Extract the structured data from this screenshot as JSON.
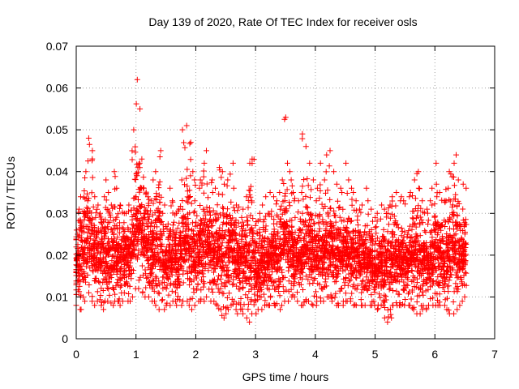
{
  "chart_data": {
    "type": "scatter",
    "title": "Day 139 of 2020, Rate Of TEC Index for receiver osls",
    "xlabel": "GPS time / hours",
    "ylabel": "ROTI / TECUs",
    "xlim": [
      0,
      7
    ],
    "ylim": [
      0,
      0.07
    ],
    "xticks": [
      0,
      1,
      2,
      3,
      4,
      5,
      6,
      7
    ],
    "xtick_labels": [
      "0",
      "1",
      "2",
      "3",
      "4",
      "5",
      "6",
      "7"
    ],
    "yticks": [
      0,
      0.01,
      0.02,
      0.03,
      0.04,
      0.05,
      0.06,
      0.07
    ],
    "ytick_labels": [
      "0",
      "0.01",
      "0.02",
      "0.03",
      "0.04",
      "0.05",
      "0.06",
      "0.07"
    ],
    "grid": true,
    "marker": "+",
    "marker_color": "#ff0000",
    "series": [
      {
        "name": "ROTI",
        "x": [
          0.0,
          0.05,
          0.1,
          0.15,
          0.2,
          0.25,
          0.3,
          0.35,
          0.4,
          0.45,
          0.5,
          0.55,
          0.6,
          0.65,
          0.7,
          0.75,
          0.8,
          0.85,
          0.9,
          0.95,
          1.0,
          1.05,
          1.1,
          1.15,
          1.2,
          1.25,
          1.3,
          1.35,
          1.4,
          1.45,
          1.5,
          1.55,
          1.6,
          1.65,
          1.7,
          1.75,
          1.8,
          1.85,
          1.9,
          1.95,
          2.0,
          2.05,
          2.1,
          2.15,
          2.2,
          2.25,
          2.3,
          2.35,
          2.4,
          2.45,
          2.5,
          2.55,
          2.6,
          2.65,
          2.7,
          2.75,
          2.8,
          2.85,
          2.9,
          2.95,
          3.0,
          3.05,
          3.1,
          3.15,
          3.2,
          3.25,
          3.3,
          3.35,
          3.4,
          3.45,
          3.5,
          3.55,
          3.6,
          3.65,
          3.7,
          3.75,
          3.8,
          3.85,
          3.9,
          3.95,
          4.0,
          4.05,
          4.1,
          4.15,
          4.2,
          4.25,
          4.3,
          4.35,
          4.4,
          4.45,
          4.5,
          4.55,
          4.6,
          4.65,
          4.7,
          4.75,
          4.8,
          4.85,
          4.9,
          4.95,
          5.0,
          5.05,
          5.1,
          5.15,
          5.2,
          5.25,
          5.3,
          5.35,
          5.4,
          5.45,
          5.5,
          5.55,
          5.6,
          5.65,
          5.7,
          5.75,
          5.8,
          5.85,
          5.9,
          5.95,
          6.0,
          6.05,
          6.1,
          6.15,
          6.2,
          6.25,
          6.3,
          6.35,
          6.4,
          6.45,
          6.5
        ],
        "y_max": [
          0.026,
          0.031,
          0.034,
          0.04,
          0.048,
          0.045,
          0.034,
          0.032,
          0.03,
          0.034,
          0.038,
          0.035,
          0.032,
          0.04,
          0.036,
          0.032,
          0.03,
          0.03,
          0.032,
          0.05,
          0.062,
          0.055,
          0.043,
          0.036,
          0.034,
          0.033,
          0.038,
          0.04,
          0.045,
          0.03,
          0.032,
          0.036,
          0.033,
          0.03,
          0.031,
          0.038,
          0.05,
          0.051,
          0.047,
          0.04,
          0.038,
          0.036,
          0.038,
          0.042,
          0.045,
          0.038,
          0.035,
          0.036,
          0.041,
          0.04,
          0.037,
          0.038,
          0.042,
          0.036,
          0.032,
          0.029,
          0.031,
          0.034,
          0.042,
          0.043,
          0.028,
          0.03,
          0.032,
          0.034,
          0.03,
          0.035,
          0.034,
          0.033,
          0.035,
          0.038,
          0.053,
          0.042,
          0.038,
          0.035,
          0.033,
          0.035,
          0.049,
          0.046,
          0.042,
          0.038,
          0.033,
          0.036,
          0.042,
          0.038,
          0.044,
          0.045,
          0.04,
          0.037,
          0.036,
          0.035,
          0.042,
          0.038,
          0.036,
          0.035,
          0.033,
          0.031,
          0.032,
          0.036,
          0.033,
          0.031,
          0.029,
          0.03,
          0.032,
          0.031,
          0.03,
          0.032,
          0.034,
          0.035,
          0.033,
          0.034,
          0.033,
          0.034,
          0.035,
          0.038,
          0.04,
          0.036,
          0.033,
          0.031,
          0.033,
          0.036,
          0.042,
          0.037,
          0.035,
          0.033,
          0.036,
          0.04,
          0.042,
          0.044,
          0.038,
          0.037,
          0.036
        ],
        "y_typical": [
          0.018,
          0.02,
          0.021,
          0.023,
          0.025,
          0.024,
          0.021,
          0.019,
          0.018,
          0.019,
          0.021,
          0.02,
          0.019,
          0.021,
          0.02,
          0.019,
          0.019,
          0.019,
          0.02,
          0.024,
          0.028,
          0.027,
          0.024,
          0.022,
          0.021,
          0.02,
          0.021,
          0.022,
          0.023,
          0.018,
          0.018,
          0.019,
          0.019,
          0.019,
          0.018,
          0.02,
          0.023,
          0.024,
          0.022,
          0.021,
          0.02,
          0.02,
          0.021,
          0.022,
          0.023,
          0.021,
          0.02,
          0.02,
          0.021,
          0.021,
          0.02,
          0.02,
          0.021,
          0.02,
          0.019,
          0.018,
          0.018,
          0.019,
          0.02,
          0.02,
          0.017,
          0.017,
          0.018,
          0.018,
          0.018,
          0.019,
          0.019,
          0.019,
          0.02,
          0.021,
          0.023,
          0.022,
          0.021,
          0.02,
          0.019,
          0.02,
          0.022,
          0.022,
          0.021,
          0.02,
          0.019,
          0.02,
          0.021,
          0.02,
          0.021,
          0.022,
          0.021,
          0.02,
          0.02,
          0.019,
          0.021,
          0.02,
          0.019,
          0.019,
          0.018,
          0.018,
          0.018,
          0.019,
          0.018,
          0.018,
          0.017,
          0.017,
          0.018,
          0.017,
          0.017,
          0.018,
          0.018,
          0.019,
          0.018,
          0.018,
          0.018,
          0.018,
          0.019,
          0.02,
          0.02,
          0.019,
          0.018,
          0.018,
          0.018,
          0.019,
          0.021,
          0.02,
          0.019,
          0.018,
          0.019,
          0.02,
          0.021,
          0.022,
          0.02,
          0.02,
          0.019
        ],
        "y_min": [
          0.008,
          0.007,
          0.007,
          0.009,
          0.011,
          0.009,
          0.008,
          0.009,
          0.008,
          0.007,
          0.009,
          0.009,
          0.008,
          0.009,
          0.009,
          0.008,
          0.009,
          0.009,
          0.009,
          0.01,
          0.012,
          0.012,
          0.011,
          0.01,
          0.01,
          0.009,
          0.009,
          0.008,
          0.007,
          0.007,
          0.008,
          0.008,
          0.009,
          0.009,
          0.008,
          0.008,
          0.009,
          0.009,
          0.008,
          0.007,
          0.008,
          0.009,
          0.009,
          0.009,
          0.01,
          0.009,
          0.009,
          0.008,
          0.007,
          0.005,
          0.006,
          0.007,
          0.008,
          0.007,
          0.006,
          0.007,
          0.006,
          0.005,
          0.004,
          0.006,
          0.006,
          0.007,
          0.007,
          0.008,
          0.008,
          0.008,
          0.008,
          0.008,
          0.007,
          0.008,
          0.009,
          0.009,
          0.01,
          0.01,
          0.009,
          0.008,
          0.008,
          0.009,
          0.009,
          0.008,
          0.008,
          0.009,
          0.009,
          0.009,
          0.01,
          0.01,
          0.009,
          0.008,
          0.008,
          0.008,
          0.009,
          0.009,
          0.009,
          0.008,
          0.008,
          0.008,
          0.008,
          0.008,
          0.008,
          0.008,
          0.008,
          0.007,
          0.008,
          0.005,
          0.004,
          0.005,
          0.008,
          0.008,
          0.008,
          0.008,
          0.008,
          0.008,
          0.008,
          0.007,
          0.006,
          0.006,
          0.007,
          0.007,
          0.008,
          0.008,
          0.008,
          0.008,
          0.008,
          0.008,
          0.007,
          0.006,
          0.006,
          0.007,
          0.008,
          0.009,
          0.01
        ]
      }
    ]
  }
}
